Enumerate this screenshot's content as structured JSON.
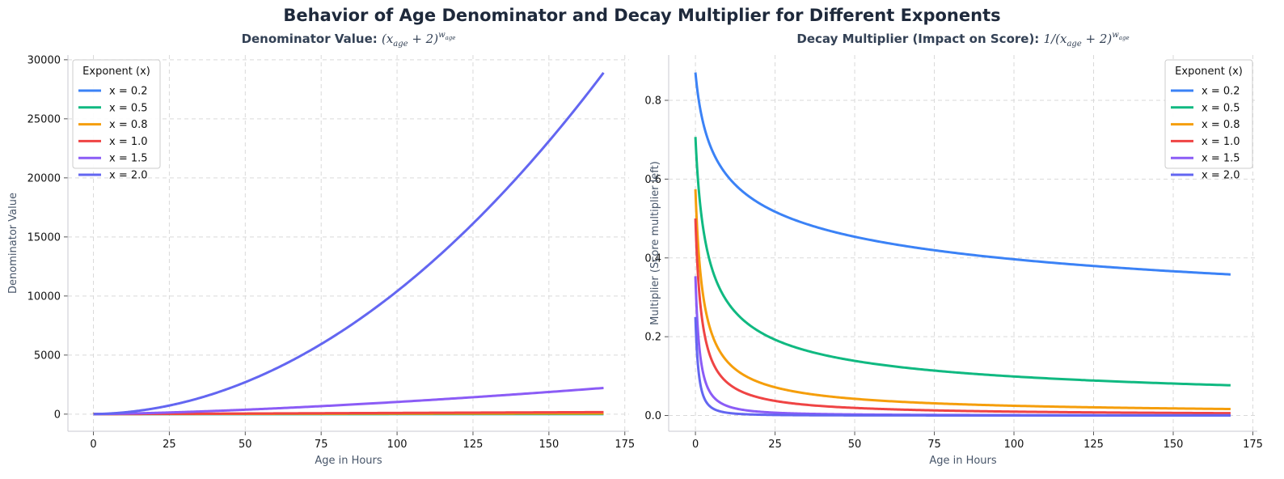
{
  "figure": {
    "title": "Behavior of Age Denominator and Decay Multiplier for Different Exponents"
  },
  "chart_data": [
    {
      "type": "line",
      "title_prefix": "Denominator Value: ",
      "title_math": "(x_age + 2)^w_age",
      "xlabel": "Age in Hours",
      "ylabel": "Denominator Value",
      "xlim": [
        -8.4,
        176.4
      ],
      "ylim": [
        -1450,
        30400
      ],
      "xticks": [
        "0",
        "25",
        "50",
        "75",
        "100",
        "125",
        "150",
        "175"
      ],
      "yticks": [
        "0",
        "5000",
        "10000",
        "15000",
        "20000",
        "25000",
        "30000"
      ],
      "grid": true,
      "legend": {
        "title": "Exponent (x)",
        "placement": "top-left"
      },
      "x_range": [
        0,
        168
      ],
      "formula": "(x + 2)^exponent",
      "series": [
        {
          "name": "x = 0.2",
          "exponent": 0.2,
          "color": "#3b82f6"
        },
        {
          "name": "x = 0.5",
          "exponent": 0.5,
          "color": "#10b981"
        },
        {
          "name": "x = 0.8",
          "exponent": 0.8,
          "color": "#f59e0b"
        },
        {
          "name": "x = 1.0",
          "exponent": 1.0,
          "color": "#ef4444"
        },
        {
          "name": "x = 1.5",
          "exponent": 1.5,
          "color": "#8b5cf6"
        },
        {
          "name": "x = 2.0",
          "exponent": 2.0,
          "color": "#6366f1"
        }
      ]
    },
    {
      "type": "line",
      "title_prefix": "Decay Multiplier (Impact on Score): ",
      "title_math": "1/(x_age + 2)^w_age",
      "xlabel": "Age in Hours",
      "ylabel": "Multiplier (Score multiplier left)",
      "xlim": [
        -8.4,
        176.4
      ],
      "ylim": [
        -0.04,
        0.915
      ],
      "xticks": [
        "0",
        "25",
        "50",
        "75",
        "100",
        "125",
        "150",
        "175"
      ],
      "yticks": [
        "0.0",
        "0.2",
        "0.4",
        "0.6",
        "0.8"
      ],
      "grid": true,
      "legend": {
        "title": "Exponent (x)",
        "placement": "top-right"
      },
      "x_range": [
        0,
        168
      ],
      "formula": "1 / (x + 2)^exponent",
      "series": [
        {
          "name": "x = 0.2",
          "exponent": 0.2,
          "color": "#3b82f6"
        },
        {
          "name": "x = 0.5",
          "exponent": 0.5,
          "color": "#10b981"
        },
        {
          "name": "x = 0.8",
          "exponent": 0.8,
          "color": "#f59e0b"
        },
        {
          "name": "x = 1.0",
          "exponent": 1.0,
          "color": "#ef4444"
        },
        {
          "name": "x = 1.5",
          "exponent": 1.5,
          "color": "#8b5cf6"
        },
        {
          "name": "x = 2.0",
          "exponent": 2.0,
          "color": "#6366f1"
        }
      ]
    }
  ]
}
